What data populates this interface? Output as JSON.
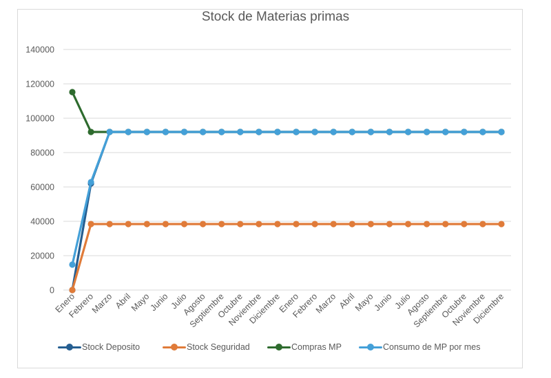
{
  "chart_data": {
    "type": "line",
    "title": "Stock de Materias primas",
    "xlabel": "",
    "ylabel": "",
    "ylim": [
      0,
      140000
    ],
    "yticks": [
      0,
      20000,
      40000,
      60000,
      80000,
      100000,
      120000,
      140000
    ],
    "ytick_labels": [
      "0",
      "20000",
      "40000",
      "60000",
      "80000",
      "100000",
      "120000",
      "140000"
    ],
    "grid": true,
    "legend_position": "bottom",
    "categories": [
      "Enero",
      "Febrero",
      "Marzo",
      "Abril",
      "Mayo",
      "Junio",
      "Julio",
      "Agosto",
      "Septiembre",
      "Octubre",
      "Noviembre",
      "Diciembre",
      "Enero",
      "Febrero",
      "Marzo",
      "Abril",
      "Mayo",
      "Junio",
      "Julio",
      "Agosto",
      "Septiembre",
      "Octubre",
      "Noviembre",
      "Diciembre"
    ],
    "series": [
      {
        "name": "Stock  Deposito",
        "color": "#255e91",
        "values": [
          0,
          62000,
          92000,
          92000,
          92000,
          92000,
          92000,
          92000,
          92000,
          92000,
          92000,
          92000,
          92000,
          92000,
          92000,
          92000,
          92000,
          92000,
          92000,
          92000,
          92000,
          92000,
          92000,
          92000
        ]
      },
      {
        "name": "Stock Seguridad",
        "color": "#e07b39",
        "values": [
          0,
          38400,
          38400,
          38400,
          38400,
          38400,
          38400,
          38400,
          38400,
          38400,
          38400,
          38400,
          38400,
          38400,
          38400,
          38400,
          38400,
          38400,
          38400,
          38400,
          38400,
          38400,
          38400,
          38400
        ]
      },
      {
        "name": "Compras MP",
        "color": "#2e6b2e",
        "values": [
          115200,
          92000,
          92000,
          92000,
          92000,
          92000,
          92000,
          92000,
          92000,
          92000,
          92000,
          92000,
          92000,
          92000,
          92000,
          92000,
          92000,
          92000,
          92000,
          92000,
          92000,
          92000,
          92000,
          92000
        ]
      },
      {
        "name": "Consumo de MP por mes",
        "color": "#44a0d8",
        "values": [
          14800,
          62800,
          92000,
          92000,
          92000,
          92000,
          92000,
          92000,
          92000,
          92000,
          92000,
          92000,
          92000,
          92000,
          92000,
          92000,
          92000,
          92000,
          92000,
          92000,
          92000,
          92000,
          92000,
          92000
        ]
      }
    ]
  },
  "legend": {
    "items": [
      {
        "label": "Stock  Deposito",
        "color": "#255e91"
      },
      {
        "label": "Stock Seguridad",
        "color": "#e07b39"
      },
      {
        "label": "Compras MP",
        "color": "#2e6b2e"
      },
      {
        "label": "Consumo de MP por mes",
        "color": "#44a0d8"
      }
    ]
  }
}
